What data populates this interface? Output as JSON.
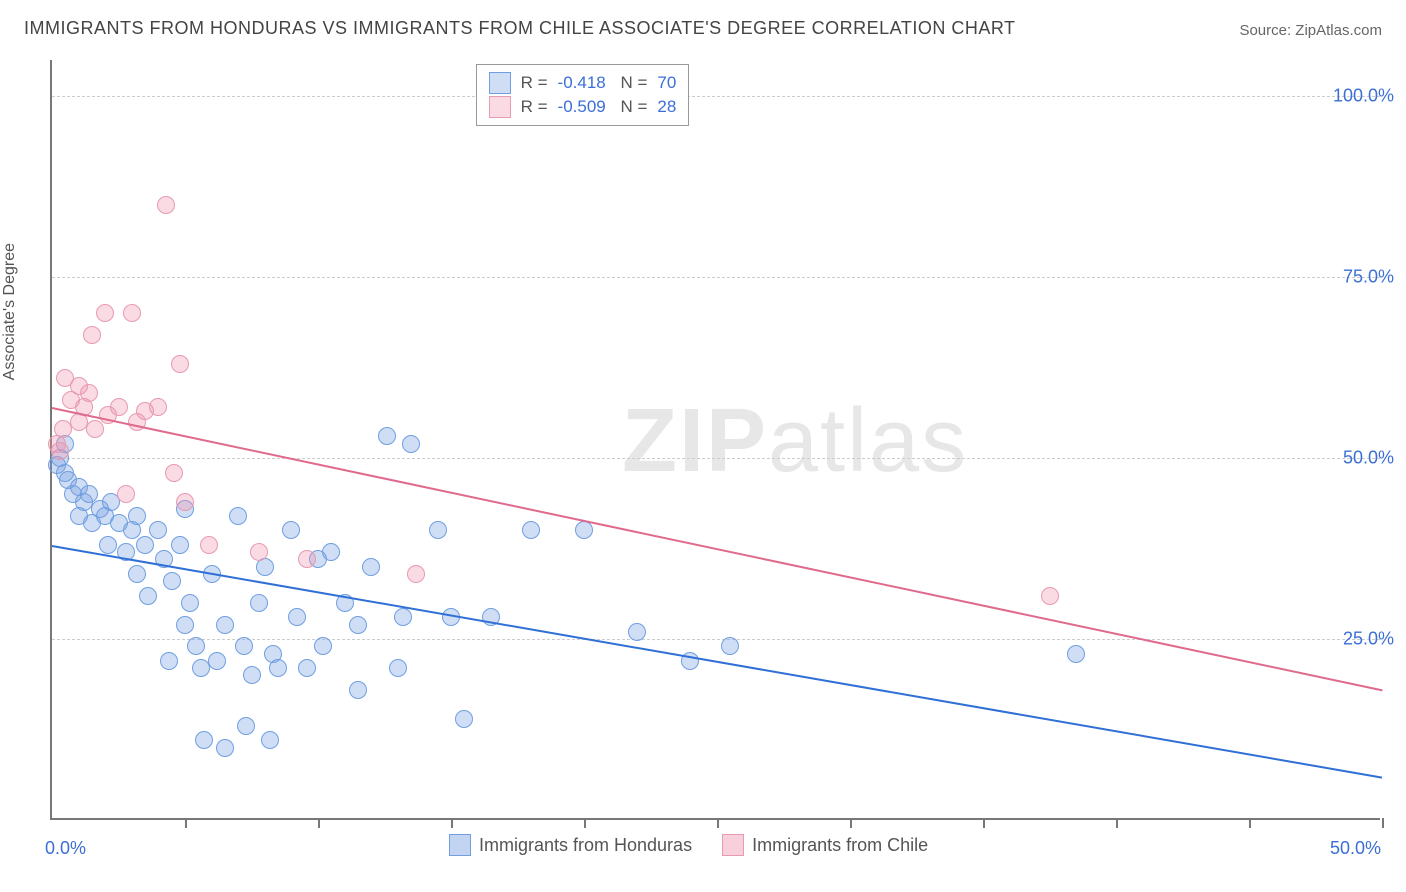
{
  "title": "IMMIGRANTS FROM HONDURAS VS IMMIGRANTS FROM CHILE ASSOCIATE'S DEGREE CORRELATION CHART",
  "source": "Source: ZipAtlas.com",
  "y_axis_label": "Associate's Degree",
  "watermark": {
    "bold": "ZIP",
    "rest": "atlas"
  },
  "chart": {
    "type": "scatter",
    "background_color": "#ffffff",
    "grid_color": "#cccccc",
    "axis_color": "#777777",
    "xlim": [
      0,
      50
    ],
    "ylim": [
      0,
      105
    ],
    "ytick_values": [
      25,
      50,
      75,
      100
    ],
    "ytick_labels": [
      "25.0%",
      "50.0%",
      "75.0%",
      "100.0%"
    ],
    "xtick_label_left": "0.0%",
    "xtick_label_right": "50.0%",
    "x_minor_ticks": [
      0,
      5,
      10,
      15,
      20,
      25,
      30,
      35,
      40,
      45,
      50
    ],
    "point_radius": 9,
    "series": [
      {
        "name": "Immigrants from Honduras",
        "fill": "rgba(120,160,225,0.35)",
        "stroke": "#6f9fe0",
        "trend_color": "#2f6fd6",
        "R": "-0.418",
        "N": "70",
        "trend": {
          "x1": 0,
          "y1": 38,
          "x2": 50,
          "y2": 6
        },
        "points": [
          [
            0.2,
            49
          ],
          [
            0.3,
            50
          ],
          [
            0.5,
            48
          ],
          [
            0.6,
            47
          ],
          [
            0.5,
            52
          ],
          [
            0.8,
            45
          ],
          [
            1.0,
            46
          ],
          [
            1.2,
            44
          ],
          [
            1.0,
            42
          ],
          [
            1.4,
            45
          ],
          [
            1.5,
            41
          ],
          [
            1.8,
            43
          ],
          [
            2.0,
            42
          ],
          [
            2.2,
            44
          ],
          [
            2.1,
            38
          ],
          [
            2.5,
            41
          ],
          [
            2.8,
            37
          ],
          [
            3.0,
            40
          ],
          [
            3.2,
            42
          ],
          [
            3.2,
            34
          ],
          [
            3.5,
            38
          ],
          [
            3.6,
            31
          ],
          [
            4.0,
            40
          ],
          [
            4.2,
            36
          ],
          [
            4.4,
            22
          ],
          [
            4.5,
            33
          ],
          [
            4.8,
            38
          ],
          [
            5.0,
            43
          ],
          [
            5.0,
            27
          ],
          [
            5.2,
            30
          ],
          [
            5.4,
            24
          ],
          [
            5.6,
            21
          ],
          [
            5.7,
            11
          ],
          [
            6.0,
            34
          ],
          [
            6.2,
            22
          ],
          [
            6.5,
            27
          ],
          [
            6.5,
            10
          ],
          [
            7.0,
            42
          ],
          [
            7.2,
            24
          ],
          [
            7.3,
            13
          ],
          [
            7.5,
            20
          ],
          [
            7.8,
            30
          ],
          [
            8.0,
            35
          ],
          [
            8.2,
            11
          ],
          [
            8.3,
            23
          ],
          [
            8.5,
            21
          ],
          [
            9.0,
            40
          ],
          [
            9.2,
            28
          ],
          [
            9.6,
            21
          ],
          [
            10.0,
            36
          ],
          [
            10.2,
            24
          ],
          [
            10.5,
            37
          ],
          [
            11.0,
            30
          ],
          [
            11.5,
            27
          ],
          [
            11.5,
            18
          ],
          [
            12.0,
            35
          ],
          [
            12.6,
            53
          ],
          [
            13.0,
            21
          ],
          [
            13.2,
            28
          ],
          [
            13.5,
            52
          ],
          [
            14.5,
            40
          ],
          [
            15.0,
            28
          ],
          [
            15.5,
            14
          ],
          [
            16.5,
            28
          ],
          [
            18.0,
            40
          ],
          [
            20.0,
            40
          ],
          [
            22.0,
            26
          ],
          [
            24.0,
            22
          ],
          [
            25.5,
            24
          ],
          [
            38.5,
            23
          ]
        ]
      },
      {
        "name": "Immigrants from Chile",
        "fill": "rgba(240,150,175,0.35)",
        "stroke": "#e79ab0",
        "trend_color": "#e06a8c",
        "R": "-0.509",
        "N": "28",
        "trend": {
          "x1": 0,
          "y1": 57,
          "x2": 50,
          "y2": 18
        },
        "points": [
          [
            0.2,
            52
          ],
          [
            0.3,
            51
          ],
          [
            0.4,
            54
          ],
          [
            0.5,
            61
          ],
          [
            0.7,
            58
          ],
          [
            1.0,
            60
          ],
          [
            1.0,
            55
          ],
          [
            1.2,
            57
          ],
          [
            1.4,
            59
          ],
          [
            1.5,
            67
          ],
          [
            1.6,
            54
          ],
          [
            2.0,
            70
          ],
          [
            2.1,
            56
          ],
          [
            2.5,
            57
          ],
          [
            2.8,
            45
          ],
          [
            3.0,
            70
          ],
          [
            3.2,
            55
          ],
          [
            3.5,
            56.5
          ],
          [
            4.0,
            57
          ],
          [
            4.3,
            85
          ],
          [
            4.6,
            48
          ],
          [
            4.8,
            63
          ],
          [
            5.0,
            44
          ],
          [
            5.9,
            38
          ],
          [
            7.8,
            37
          ],
          [
            9.6,
            36
          ],
          [
            13.7,
            34
          ],
          [
            37.5,
            31
          ]
        ]
      }
    ]
  },
  "legend_bottom": [
    {
      "label": "Immigrants from Honduras",
      "fill": "rgba(120,160,225,0.45)",
      "stroke": "#6f9fe0"
    },
    {
      "label": "Immigrants from Chile",
      "fill": "rgba(240,150,175,0.45)",
      "stroke": "#e79ab0"
    }
  ]
}
